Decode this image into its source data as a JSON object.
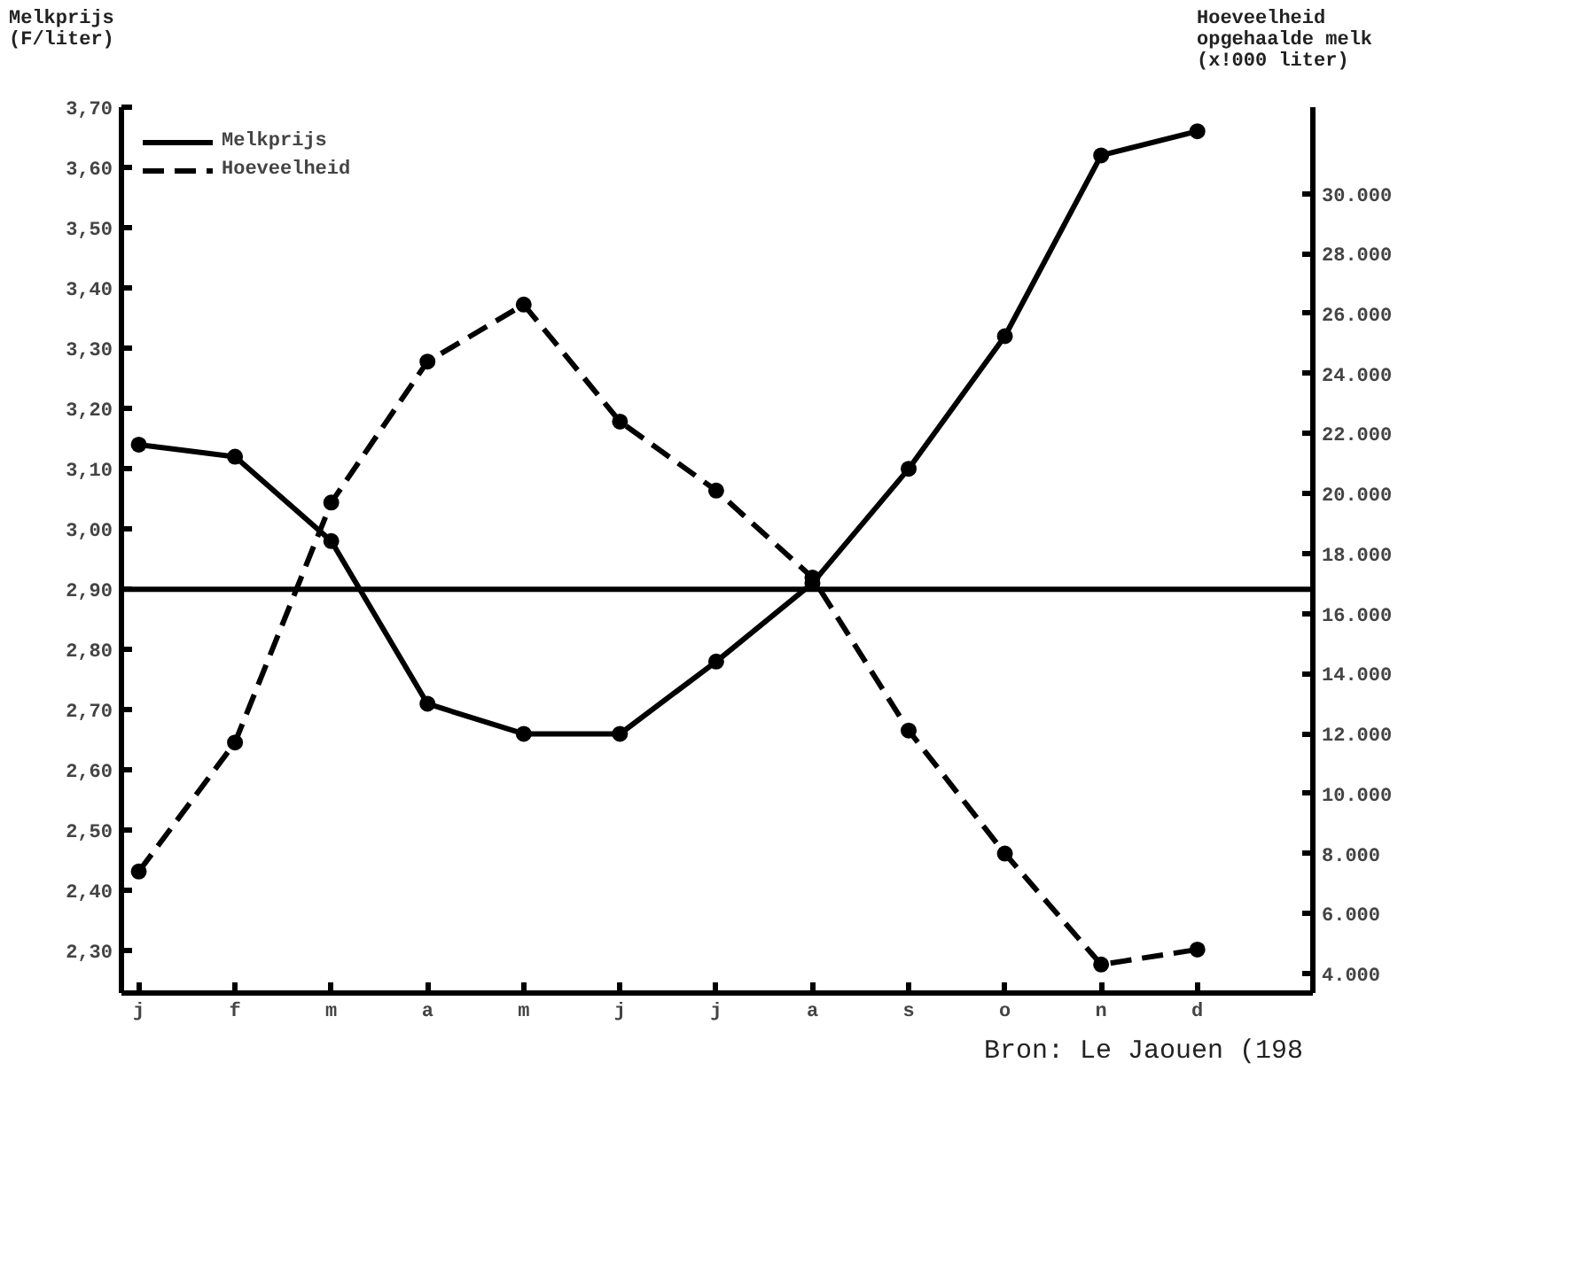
{
  "chart_data": {
    "type": "line",
    "categories": [
      "j",
      "f",
      "m",
      "a",
      "m",
      "j",
      "j",
      "a",
      "s",
      "o",
      "n",
      "d"
    ],
    "ylabel": "Melkprijs\n(F/liter)",
    "y2label": "Hoeveelheid\nopgehaalde melk\n(x!000 liter)",
    "ylim": [
      2.23,
      3.7
    ],
    "yticks": [
      {
        "value": 2.3,
        "label": "2,30"
      },
      {
        "value": 2.4,
        "label": "2,40"
      },
      {
        "value": 2.5,
        "label": "2,50"
      },
      {
        "value": 2.6,
        "label": "2,60"
      },
      {
        "value": 2.7,
        "label": "2,70"
      },
      {
        "value": 2.8,
        "label": "2,80"
      },
      {
        "value": 2.9,
        "label": "2,90"
      },
      {
        "value": 3.0,
        "label": "3,00"
      },
      {
        "value": 3.1,
        "label": "3,10"
      },
      {
        "value": 3.2,
        "label": "3,20"
      },
      {
        "value": 3.3,
        "label": "3,30"
      },
      {
        "value": 3.4,
        "label": "3,40"
      },
      {
        "value": 3.5,
        "label": "3,50"
      },
      {
        "value": 3.6,
        "label": "3,60"
      },
      {
        "value": 3.7,
        "label": "3,70"
      }
    ],
    "y2lim": [
      3350,
      32880
    ],
    "y2ticks": [
      {
        "value": 4000,
        "label": "4.000"
      },
      {
        "value": 6000,
        "label": "6.000"
      },
      {
        "value": 8000,
        "label": "8.000"
      },
      {
        "value": 10000,
        "label": "10.000"
      },
      {
        "value": 12000,
        "label": "12.000"
      },
      {
        "value": 14000,
        "label": "14.000"
      },
      {
        "value": 16000,
        "label": "16.000"
      },
      {
        "value": 18000,
        "label": "18.000"
      },
      {
        "value": 20000,
        "label": "20.000"
      },
      {
        "value": 22000,
        "label": "22.000"
      },
      {
        "value": 24000,
        "label": "24.000"
      },
      {
        "value": 26000,
        "label": "26.000"
      },
      {
        "value": 28000,
        "label": "28.000"
      },
      {
        "value": 30000,
        "label": "30.000"
      }
    ],
    "series": [
      {
        "name": "Melkprijs",
        "color": "#000000",
        "line_style": "solid",
        "values": [
          3.14,
          3.12,
          2.98,
          2.71,
          2.66,
          2.66,
          2.78,
          2.91,
          3.1,
          3.32,
          3.62,
          3.66
        ]
      },
      {
        "name": "Hoeveelheid",
        "color": "#000000",
        "line_style": "dashed",
        "axis": "y2",
        "values": [
          7400,
          11700,
          19700,
          24400,
          26300,
          22400,
          20100,
          17200,
          12100,
          8000,
          4300,
          4800
        ]
      }
    ],
    "ref_lines": [
      {
        "axis": "y",
        "value": 2.9,
        "color": "#000000"
      }
    ],
    "marker": "circle",
    "grid": false,
    "legend": "top left",
    "annotations": [
      "Bron: Le Jaouen (198"
    ]
  }
}
